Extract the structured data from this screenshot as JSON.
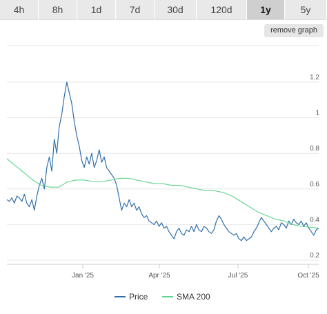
{
  "ranges": [
    {
      "label": "4h",
      "active": false
    },
    {
      "label": "8h",
      "active": false
    },
    {
      "label": "1d",
      "active": false
    },
    {
      "label": "7d",
      "active": false
    },
    {
      "label": "30d",
      "active": false
    },
    {
      "label": "120d",
      "active": false
    },
    {
      "label": "1y",
      "active": true
    },
    {
      "label": "5y",
      "active": false
    }
  ],
  "remove_graph_label": "remove graph",
  "colors": {
    "price": "#2f6ea8",
    "sma": "#5fd38d",
    "grid": "#e6e6e6",
    "axis": "#cccccc"
  },
  "chart_data": {
    "type": "line",
    "grid": true,
    "legend_position": "bottom",
    "x_ticks": [
      "Jan '25",
      "Apr '25",
      "Jul '25",
      "Oct '25"
    ],
    "y_ticks": [
      "0.2",
      "0.4",
      "0.6",
      "0.8",
      "1",
      "1.2"
    ],
    "ylim": [
      0.2,
      1.2
    ],
    "series": [
      {
        "name": "Price",
        "color": "#2f6ea8",
        "values": [
          0.54,
          0.53,
          0.55,
          0.52,
          0.56,
          0.55,
          0.53,
          0.57,
          0.52,
          0.5,
          0.54,
          0.48,
          0.56,
          0.62,
          0.66,
          0.6,
          0.72,
          0.78,
          0.7,
          0.88,
          0.8,
          0.95,
          1.02,
          1.12,
          1.2,
          1.14,
          1.08,
          0.98,
          0.9,
          0.84,
          0.76,
          0.72,
          0.78,
          0.74,
          0.8,
          0.72,
          0.76,
          0.82,
          0.75,
          0.78,
          0.72,
          0.7,
          0.68,
          0.66,
          0.62,
          0.55,
          0.48,
          0.52,
          0.5,
          0.54,
          0.5,
          0.52,
          0.48,
          0.5,
          0.46,
          0.44,
          0.45,
          0.42,
          0.41,
          0.4,
          0.42,
          0.39,
          0.41,
          0.38,
          0.39,
          0.36,
          0.34,
          0.32,
          0.36,
          0.38,
          0.35,
          0.34,
          0.37,
          0.36,
          0.39,
          0.36,
          0.4,
          0.37,
          0.36,
          0.39,
          0.38,
          0.36,
          0.35,
          0.37,
          0.42,
          0.45,
          0.43,
          0.4,
          0.38,
          0.36,
          0.35,
          0.34,
          0.35,
          0.32,
          0.31,
          0.33,
          0.31,
          0.32,
          0.33,
          0.36,
          0.38,
          0.41,
          0.44,
          0.42,
          0.4,
          0.38,
          0.36,
          0.38,
          0.39,
          0.37,
          0.41,
          0.4,
          0.38,
          0.42,
          0.4,
          0.43,
          0.41,
          0.4,
          0.42,
          0.39,
          0.41,
          0.38,
          0.36,
          0.34,
          0.37,
          0.38
        ]
      },
      {
        "name": "SMA 200",
        "color": "#5fd38d",
        "values": [
          0.77,
          0.73,
          0.69,
          0.65,
          0.62,
          0.61,
          0.61,
          0.64,
          0.65,
          0.65,
          0.64,
          0.64,
          0.65,
          0.66,
          0.66,
          0.65,
          0.64,
          0.63,
          0.63,
          0.62,
          0.62,
          0.61,
          0.6,
          0.59,
          0.59,
          0.58,
          0.56,
          0.53,
          0.5,
          0.47,
          0.45,
          0.43,
          0.42,
          0.4,
          0.39,
          0.385,
          0.38
        ]
      }
    ]
  }
}
